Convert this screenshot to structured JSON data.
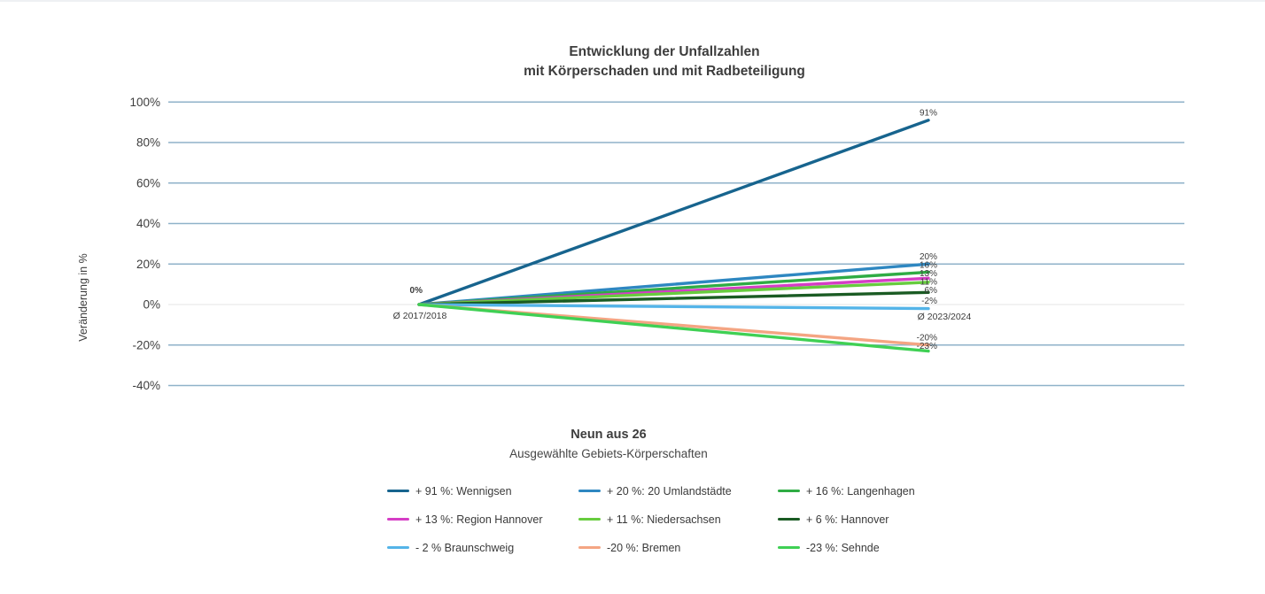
{
  "colors": {
    "grid_line": "#8fb2c9",
    "zero_line": "#ededed",
    "text_dark": "#3e3e3e",
    "label_text": "#3c3c3c"
  },
  "chart_data": {
    "type": "line",
    "title_lines": [
      "Entwicklung der Unfallzahlen",
      "mit Körperschaden und mit Radbeteiligung"
    ],
    "subtitle_lines": [
      "Neun aus 26",
      "Ausgewählte Gebiets-Körperschaften"
    ],
    "ylabel": "Veränderung in %",
    "ylim": [
      -40,
      100
    ],
    "yticks": [
      {
        "label": "100%",
        "value": 100
      },
      {
        "label": "80%",
        "value": 80
      },
      {
        "label": "60%",
        "value": 60
      },
      {
        "label": "40%",
        "value": 40
      },
      {
        "label": "20%",
        "value": 20
      },
      {
        "label": "0%",
        "value": 0
      },
      {
        "label": "-20%",
        "value": -20
      },
      {
        "label": "-40%",
        "value": -40
      }
    ],
    "grid": true,
    "legend_position": "bottom",
    "origin_label": "0%",
    "x_points": [
      {
        "label": "Ø 2017/2018"
      },
      {
        "label": "Ø 2023/2024"
      }
    ],
    "series": [
      {
        "name": "Wennigsen",
        "values": [
          0,
          91
        ],
        "color": "#17648e",
        "end_label": "91%",
        "legend_label": "+ 91 %: Wennigsen"
      },
      {
        "name": "20 Umlandstädte",
        "values": [
          0,
          20
        ],
        "color": "#2e87c1",
        "end_label": "20%",
        "legend_label": "+ 20 %: 20 Umlandstädte"
      },
      {
        "name": "Langenhagen",
        "values": [
          0,
          16
        ],
        "color": "#2fac44",
        "end_label": "16%",
        "legend_label": "+ 16 %: Langenhagen"
      },
      {
        "name": "Region Hannover",
        "values": [
          0,
          13
        ],
        "color": "#d53dc5",
        "end_label": "13%",
        "legend_label": "+ 13 %: Region Hannover"
      },
      {
        "name": "Niedersachsen",
        "values": [
          0,
          11
        ],
        "color": "#67cc3e",
        "end_label": "11%",
        "legend_label": "+ 11 %: Niedersachsen"
      },
      {
        "name": "Hannover",
        "values": [
          0,
          6
        ],
        "color": "#1a5b23",
        "end_label": "6%",
        "legend_label": "+ 6 %: Hannover"
      },
      {
        "name": "Braunschweig",
        "values": [
          0,
          -2
        ],
        "color": "#54b4e8",
        "end_label": "-2%",
        "legend_label": "- 2 % Braunschweig"
      },
      {
        "name": "Bremen",
        "values": [
          0,
          -20
        ],
        "color": "#f4a583",
        "end_label": "-20%",
        "legend_label": "-20 %: Bremen"
      },
      {
        "name": "Sehnde",
        "values": [
          0,
          -23
        ],
        "color": "#3fd054",
        "end_label": "-23%",
        "legend_label": "-23 %: Sehnde"
      }
    ]
  }
}
